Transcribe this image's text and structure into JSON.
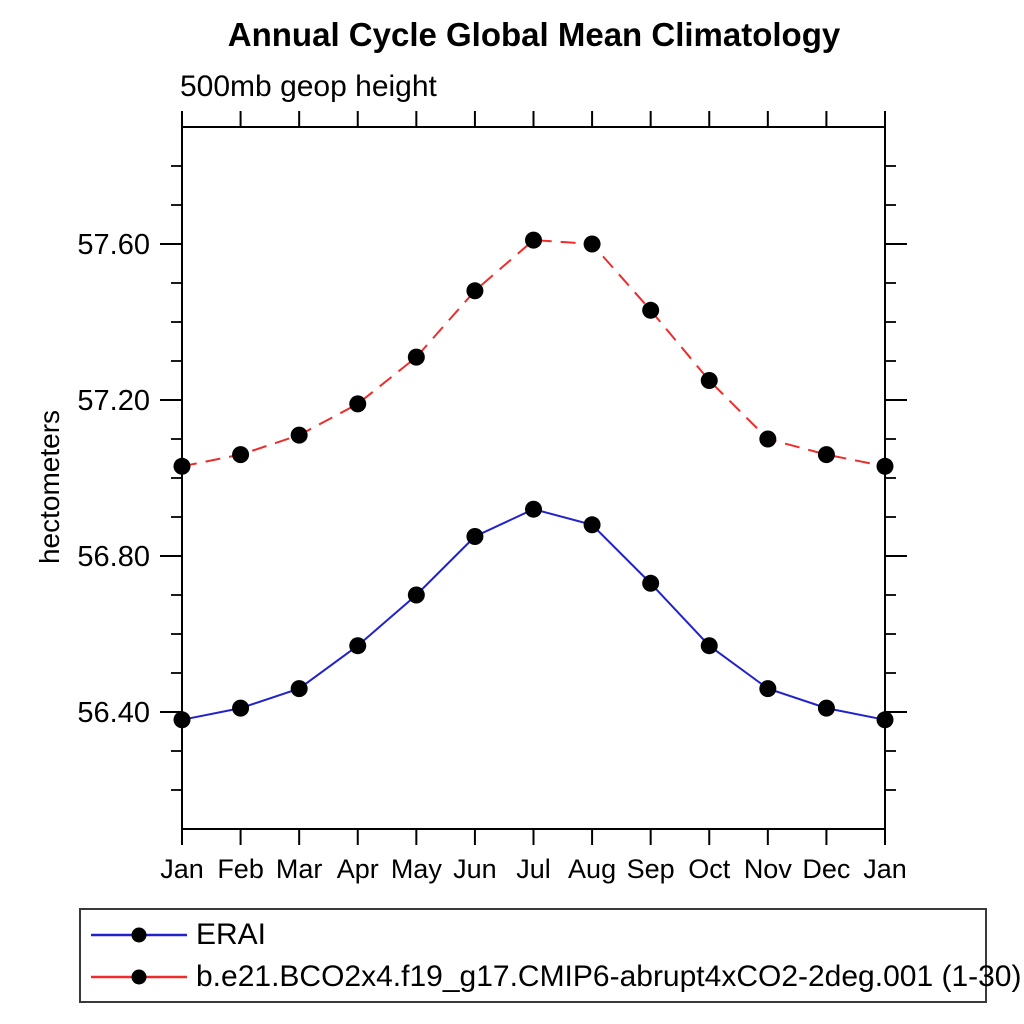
{
  "header": {
    "title": "Annual Cycle Global Mean Climatology",
    "subtitle": "500mb geop height"
  },
  "chart_data": {
    "type": "line",
    "title": "Annual Cycle Global Mean Climatology",
    "subtitle": "500mb geop height",
    "ylabel": "hectometers",
    "xlabel": "",
    "categories": [
      "Jan",
      "Feb",
      "Mar",
      "Apr",
      "May",
      "Jun",
      "Jul",
      "Aug",
      "Sep",
      "Oct",
      "Nov",
      "Dec",
      "Jan"
    ],
    "ylim": [
      56.1,
      57.9
    ],
    "yticks_major": {
      "values": [
        56.4,
        56.8,
        57.2,
        57.6
      ],
      "labels": [
        "56.40",
        "56.80",
        "57.20",
        "57.60"
      ]
    },
    "ytick_minor_interval": 0.1,
    "grid": false,
    "tick_style": "outward-box-frame",
    "legend_position": "bottom-left-box",
    "series": [
      {
        "name": "ERAI",
        "line_color": "#2222CC",
        "line_style": "solid",
        "marker": "filled-circle",
        "marker_color": "#000000",
        "values": [
          56.38,
          56.41,
          56.46,
          56.57,
          56.7,
          56.85,
          56.92,
          56.88,
          56.73,
          56.57,
          56.46,
          56.41,
          56.38
        ]
      },
      {
        "name": "b.e21.BCO2x4.f19_g17.CMIP6-abrupt4xCO2-2deg.001 (1-30)",
        "line_color": "#EE2C2C",
        "line_style": "dashed",
        "marker": "filled-circle",
        "marker_color": "#000000",
        "values": [
          57.03,
          57.06,
          57.11,
          57.19,
          57.31,
          57.48,
          57.61,
          57.6,
          57.43,
          57.25,
          57.1,
          57.06,
          57.03
        ]
      }
    ]
  },
  "legend": {
    "items": [
      {
        "label": "ERAI"
      },
      {
        "label": "b.e21.BCO2x4.f19_g17.CMIP6-abrupt4xCO2-2deg.001 (1-30)"
      }
    ]
  }
}
